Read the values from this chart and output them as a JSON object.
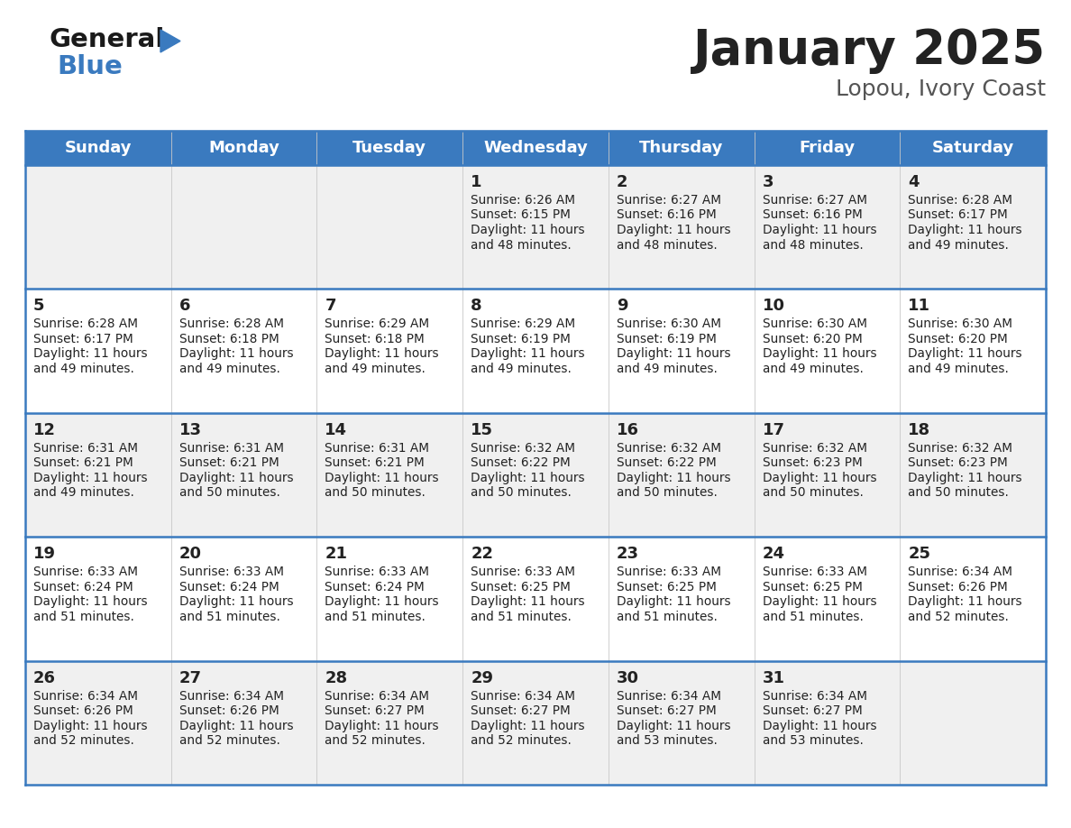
{
  "title": "January 2025",
  "subtitle": "Lopou, Ivory Coast",
  "days_of_week": [
    "Sunday",
    "Monday",
    "Tuesday",
    "Wednesday",
    "Thursday",
    "Friday",
    "Saturday"
  ],
  "header_bg": "#3a7abf",
  "header_text": "#ffffff",
  "row_bg_odd": "#f0f0f0",
  "row_bg_even": "#ffffff",
  "cell_text": "#222222",
  "border_color": "#3a7abf",
  "title_color": "#222222",
  "subtitle_color": "#555555",
  "calendar_data": [
    [
      null,
      null,
      null,
      {
        "day": 1,
        "sunrise": "6:26 AM",
        "sunset": "6:15 PM",
        "daylight": "11 hours and 48 minutes."
      },
      {
        "day": 2,
        "sunrise": "6:27 AM",
        "sunset": "6:16 PM",
        "daylight": "11 hours and 48 minutes."
      },
      {
        "day": 3,
        "sunrise": "6:27 AM",
        "sunset": "6:16 PM",
        "daylight": "11 hours and 48 minutes."
      },
      {
        "day": 4,
        "sunrise": "6:28 AM",
        "sunset": "6:17 PM",
        "daylight": "11 hours and 49 minutes."
      }
    ],
    [
      {
        "day": 5,
        "sunrise": "6:28 AM",
        "sunset": "6:17 PM",
        "daylight": "11 hours and 49 minutes."
      },
      {
        "day": 6,
        "sunrise": "6:28 AM",
        "sunset": "6:18 PM",
        "daylight": "11 hours and 49 minutes."
      },
      {
        "day": 7,
        "sunrise": "6:29 AM",
        "sunset": "6:18 PM",
        "daylight": "11 hours and 49 minutes."
      },
      {
        "day": 8,
        "sunrise": "6:29 AM",
        "sunset": "6:19 PM",
        "daylight": "11 hours and 49 minutes."
      },
      {
        "day": 9,
        "sunrise": "6:30 AM",
        "sunset": "6:19 PM",
        "daylight": "11 hours and 49 minutes."
      },
      {
        "day": 10,
        "sunrise": "6:30 AM",
        "sunset": "6:20 PM",
        "daylight": "11 hours and 49 minutes."
      },
      {
        "day": 11,
        "sunrise": "6:30 AM",
        "sunset": "6:20 PM",
        "daylight": "11 hours and 49 minutes."
      }
    ],
    [
      {
        "day": 12,
        "sunrise": "6:31 AM",
        "sunset": "6:21 PM",
        "daylight": "11 hours and 49 minutes."
      },
      {
        "day": 13,
        "sunrise": "6:31 AM",
        "sunset": "6:21 PM",
        "daylight": "11 hours and 50 minutes."
      },
      {
        "day": 14,
        "sunrise": "6:31 AM",
        "sunset": "6:21 PM",
        "daylight": "11 hours and 50 minutes."
      },
      {
        "day": 15,
        "sunrise": "6:32 AM",
        "sunset": "6:22 PM",
        "daylight": "11 hours and 50 minutes."
      },
      {
        "day": 16,
        "sunrise": "6:32 AM",
        "sunset": "6:22 PM",
        "daylight": "11 hours and 50 minutes."
      },
      {
        "day": 17,
        "sunrise": "6:32 AM",
        "sunset": "6:23 PM",
        "daylight": "11 hours and 50 minutes."
      },
      {
        "day": 18,
        "sunrise": "6:32 AM",
        "sunset": "6:23 PM",
        "daylight": "11 hours and 50 minutes."
      }
    ],
    [
      {
        "day": 19,
        "sunrise": "6:33 AM",
        "sunset": "6:24 PM",
        "daylight": "11 hours and 51 minutes."
      },
      {
        "day": 20,
        "sunrise": "6:33 AM",
        "sunset": "6:24 PM",
        "daylight": "11 hours and 51 minutes."
      },
      {
        "day": 21,
        "sunrise": "6:33 AM",
        "sunset": "6:24 PM",
        "daylight": "11 hours and 51 minutes."
      },
      {
        "day": 22,
        "sunrise": "6:33 AM",
        "sunset": "6:25 PM",
        "daylight": "11 hours and 51 minutes."
      },
      {
        "day": 23,
        "sunrise": "6:33 AM",
        "sunset": "6:25 PM",
        "daylight": "11 hours and 51 minutes."
      },
      {
        "day": 24,
        "sunrise": "6:33 AM",
        "sunset": "6:25 PM",
        "daylight": "11 hours and 51 minutes."
      },
      {
        "day": 25,
        "sunrise": "6:34 AM",
        "sunset": "6:26 PM",
        "daylight": "11 hours and 52 minutes."
      }
    ],
    [
      {
        "day": 26,
        "sunrise": "6:34 AM",
        "sunset": "6:26 PM",
        "daylight": "11 hours and 52 minutes."
      },
      {
        "day": 27,
        "sunrise": "6:34 AM",
        "sunset": "6:26 PM",
        "daylight": "11 hours and 52 minutes."
      },
      {
        "day": 28,
        "sunrise": "6:34 AM",
        "sunset": "6:27 PM",
        "daylight": "11 hours and 52 minutes."
      },
      {
        "day": 29,
        "sunrise": "6:34 AM",
        "sunset": "6:27 PM",
        "daylight": "11 hours and 52 minutes."
      },
      {
        "day": 30,
        "sunrise": "6:34 AM",
        "sunset": "6:27 PM",
        "daylight": "11 hours and 53 minutes."
      },
      {
        "day": 31,
        "sunrise": "6:34 AM",
        "sunset": "6:27 PM",
        "daylight": "11 hours and 53 minutes."
      },
      null
    ]
  ],
  "logo_general_color": "#1a1a1a",
  "logo_blue_color": "#3a7abf",
  "fig_width": 11.88,
  "fig_height": 9.18,
  "dpi": 100
}
